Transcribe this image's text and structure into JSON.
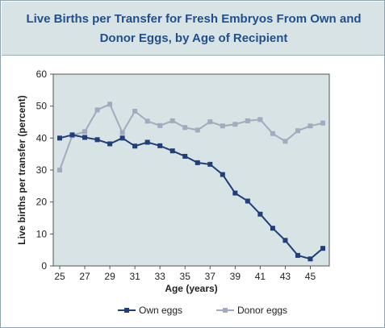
{
  "chart_data": {
    "type": "line",
    "title": "Live Births per Transfer for Fresh Embryos From Own and Donor Eggs, by Age of Recipient",
    "xlabel": "Age (years)",
    "ylabel": "Live births per transfer (percent)",
    "xlim": [
      25,
      46
    ],
    "ylim": [
      0,
      60
    ],
    "x_ticks": [
      25,
      27,
      29,
      31,
      33,
      35,
      37,
      39,
      41,
      43,
      45
    ],
    "y_ticks": [
      0,
      10,
      20,
      30,
      40,
      50,
      60
    ],
    "grid": false,
    "legend_position": "bottom",
    "x": [
      25,
      26,
      27,
      28,
      29,
      30,
      31,
      32,
      33,
      34,
      35,
      36,
      37,
      38,
      39,
      40,
      41,
      42,
      43,
      44,
      45,
      46
    ],
    "series": [
      {
        "name": "Own eggs",
        "color": "#1f3f7a",
        "marker": "square",
        "values": [
          40.0,
          41.0,
          40.2,
          39.5,
          38.2,
          40.0,
          37.5,
          38.7,
          37.6,
          36.0,
          34.3,
          32.3,
          31.8,
          28.6,
          22.8,
          20.3,
          16.2,
          11.8,
          8.0,
          3.3,
          2.2,
          5.5
        ]
      },
      {
        "name": "Donor eggs",
        "color": "#a3a9bf",
        "marker": "square",
        "values": [
          30.0,
          40.8,
          42.0,
          48.8,
          50.6,
          41.7,
          48.4,
          45.3,
          43.9,
          45.4,
          43.3,
          42.5,
          45.1,
          43.8,
          44.3,
          45.4,
          45.8,
          41.4,
          39.0,
          42.3,
          43.8,
          44.7
        ]
      }
    ]
  }
}
